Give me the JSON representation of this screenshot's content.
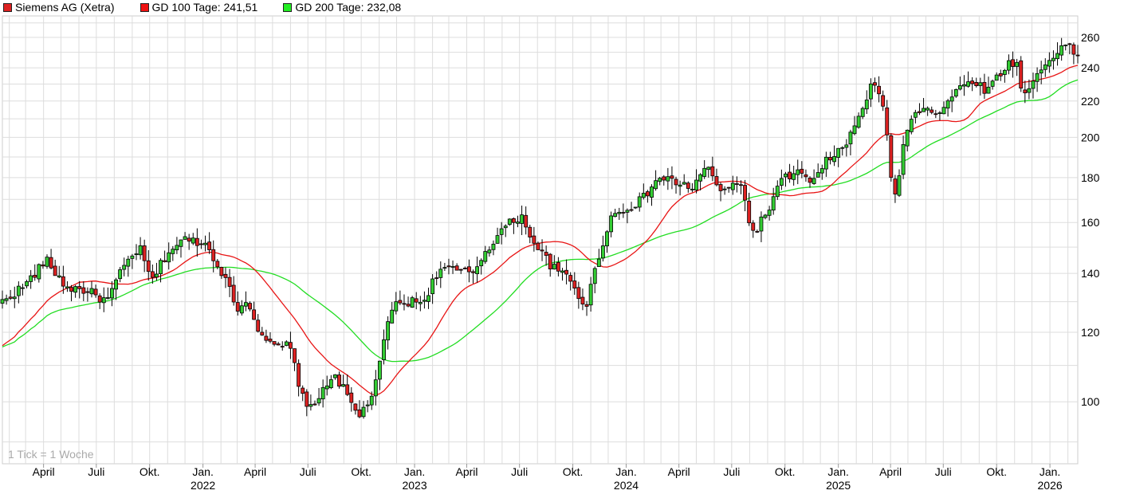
{
  "legend": {
    "price": "Siemens AG (Xetra)",
    "ma100": "GD 100 Tage: 241,51",
    "ma200": "GD 200 Tage: 232,08"
  },
  "note": "1 Tick = 1 Woche",
  "colors": {
    "up": "#33cc33",
    "down": "#dd2222",
    "ma100": "#e81515",
    "ma200": "#22dd22",
    "grid": "#dddddd"
  },
  "chart_data": {
    "type": "candlestick",
    "y_scale": "log",
    "ylim": [
      85,
      275
    ],
    "y_ticks": [
      100,
      120,
      140,
      160,
      180,
      200,
      220,
      240,
      260
    ],
    "x_ticks": [
      {
        "date": "2021-04-01",
        "label": "April"
      },
      {
        "date": "2021-07-01",
        "label": "Juli"
      },
      {
        "date": "2021-10-01",
        "label": "Okt."
      },
      {
        "date": "2022-01-01",
        "label": "Jan.",
        "year": "2022"
      },
      {
        "date": "2022-04-01",
        "label": "April"
      },
      {
        "date": "2022-07-01",
        "label": "Juli"
      },
      {
        "date": "2022-10-01",
        "label": "Okt."
      },
      {
        "date": "2023-01-01",
        "label": "Jan.",
        "year": "2023"
      },
      {
        "date": "2023-04-01",
        "label": "April"
      },
      {
        "date": "2023-07-01",
        "label": "Juli"
      },
      {
        "date": "2023-10-01",
        "label": "Okt."
      },
      {
        "date": "2024-01-01",
        "label": "Jan.",
        "year": "2024"
      },
      {
        "date": "2024-04-01",
        "label": "April"
      },
      {
        "date": "2024-07-01",
        "label": "Juli"
      },
      {
        "date": "2024-10-01",
        "label": "Okt."
      },
      {
        "date": "2025-01-01",
        "label": "Jan.",
        "year": "2025"
      },
      {
        "date": "2025-04-01",
        "label": "April"
      },
      {
        "date": "2025-07-01",
        "label": "Juli"
      },
      {
        "date": "2025-10-01",
        "label": "Okt."
      },
      {
        "date": "2026-01-01",
        "label": "Jan.",
        "year": "2026"
      }
    ],
    "x_range": [
      "2021-01-20",
      "2026-02-18"
    ],
    "closes": [
      {
        "date": "2021-01-20",
        "close": 130
      },
      {
        "date": "2021-03-01",
        "close": 136
      },
      {
        "date": "2021-04-05",
        "close": 145
      },
      {
        "date": "2021-05-10",
        "close": 135
      },
      {
        "date": "2021-06-14",
        "close": 134
      },
      {
        "date": "2021-07-19",
        "close": 130
      },
      {
        "date": "2021-08-16",
        "close": 142
      },
      {
        "date": "2021-09-13",
        "close": 150
      },
      {
        "date": "2021-10-04",
        "close": 137
      },
      {
        "date": "2021-11-01",
        "close": 148
      },
      {
        "date": "2021-11-29",
        "close": 153
      },
      {
        "date": "2022-01-03",
        "close": 152
      },
      {
        "date": "2022-01-31",
        "close": 142
      },
      {
        "date": "2022-02-28",
        "close": 128
      },
      {
        "date": "2022-03-21",
        "close": 130
      },
      {
        "date": "2022-04-04",
        "close": 122
      },
      {
        "date": "2022-05-02",
        "close": 115
      },
      {
        "date": "2022-05-30",
        "close": 116
      },
      {
        "date": "2022-06-27",
        "close": 98
      },
      {
        "date": "2022-07-25",
        "close": 102
      },
      {
        "date": "2022-08-15",
        "close": 108
      },
      {
        "date": "2022-09-05",
        "close": 102
      },
      {
        "date": "2022-09-26",
        "close": 96
      },
      {
        "date": "2022-10-24",
        "close": 103
      },
      {
        "date": "2022-11-21",
        "close": 128
      },
      {
        "date": "2022-12-19",
        "close": 130
      },
      {
        "date": "2023-01-16",
        "close": 130
      },
      {
        "date": "2023-02-13",
        "close": 142
      },
      {
        "date": "2023-03-13",
        "close": 141
      },
      {
        "date": "2023-04-10",
        "close": 140
      },
      {
        "date": "2023-05-08",
        "close": 150
      },
      {
        "date": "2023-06-05",
        "close": 158
      },
      {
        "date": "2023-07-03",
        "close": 163
      },
      {
        "date": "2023-07-31",
        "close": 150
      },
      {
        "date": "2023-08-28",
        "close": 142
      },
      {
        "date": "2023-09-25",
        "close": 138
      },
      {
        "date": "2023-10-23",
        "close": 128
      },
      {
        "date": "2023-11-13",
        "close": 145
      },
      {
        "date": "2023-12-04",
        "close": 162
      },
      {
        "date": "2024-01-01",
        "close": 166
      },
      {
        "date": "2024-01-29",
        "close": 170
      },
      {
        "date": "2024-02-26",
        "close": 180
      },
      {
        "date": "2024-03-25",
        "close": 178
      },
      {
        "date": "2024-04-22",
        "close": 175
      },
      {
        "date": "2024-05-20",
        "close": 185
      },
      {
        "date": "2024-06-17",
        "close": 172
      },
      {
        "date": "2024-07-15",
        "close": 180
      },
      {
        "date": "2024-08-05",
        "close": 155
      },
      {
        "date": "2024-09-02",
        "close": 165
      },
      {
        "date": "2024-09-23",
        "close": 178
      },
      {
        "date": "2024-10-21",
        "close": 183
      },
      {
        "date": "2024-11-18",
        "close": 177
      },
      {
        "date": "2024-12-16",
        "close": 190
      },
      {
        "date": "2025-01-13",
        "close": 195
      },
      {
        "date": "2025-02-10",
        "close": 215
      },
      {
        "date": "2025-03-03",
        "close": 232
      },
      {
        "date": "2025-03-24",
        "close": 210
      },
      {
        "date": "2025-04-07",
        "close": 167
      },
      {
        "date": "2025-04-28",
        "close": 205
      },
      {
        "date": "2025-05-26",
        "close": 218
      },
      {
        "date": "2025-06-23",
        "close": 213
      },
      {
        "date": "2025-07-21",
        "close": 225
      },
      {
        "date": "2025-08-18",
        "close": 233
      },
      {
        "date": "2025-09-15",
        "close": 226
      },
      {
        "date": "2025-10-13",
        "close": 240
      },
      {
        "date": "2025-11-03",
        "close": 245
      },
      {
        "date": "2025-11-17",
        "close": 222
      },
      {
        "date": "2025-12-08",
        "close": 235
      },
      {
        "date": "2026-01-05",
        "close": 248
      },
      {
        "date": "2026-01-26",
        "close": 255
      },
      {
        "date": "2026-02-16",
        "close": 249
      }
    ],
    "series": [
      {
        "name": "GD 100 Tage: 241,51",
        "key": "ma100",
        "last": 241.51
      },
      {
        "name": "GD 200 Tage: 232,08",
        "key": "ma200",
        "last": 232.08
      }
    ]
  }
}
